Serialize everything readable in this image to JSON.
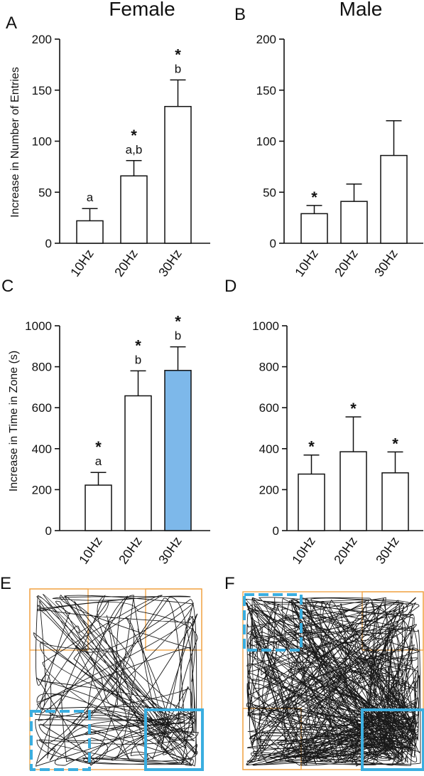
{
  "headers": {
    "female": "Female",
    "male": "Male"
  },
  "panel_letters": {
    "A": "A",
    "B": "B",
    "C": "C",
    "D": "D",
    "E": "E",
    "F": "F"
  },
  "colors": {
    "highlight_bar": "#7db8ea",
    "zone_orange": "#f0a040",
    "zone_blue": "#3aaee0"
  },
  "chart_data": [
    {
      "id": "A",
      "type": "bar",
      "panel": "A",
      "header": "Female",
      "categories": [
        "10Hz",
        "20Hz",
        "30Hz"
      ],
      "values": [
        22,
        66,
        134
      ],
      "errors": [
        12,
        15,
        26
      ],
      "ylabel": "Increase in Number of Entries",
      "ylim": [
        0,
        200
      ],
      "yticks": [
        "0",
        "50",
        "100",
        "150",
        "200"
      ],
      "stars": [
        "",
        "*",
        "*"
      ],
      "letters": [
        "a",
        "a,b",
        "b"
      ],
      "fills": [
        "#ffffff",
        "#ffffff",
        "#ffffff"
      ]
    },
    {
      "id": "B",
      "type": "bar",
      "panel": "B",
      "header": "Male",
      "categories": [
        "10Hz",
        "20Hz",
        "30Hz"
      ],
      "values": [
        29,
        41,
        86
      ],
      "errors": [
        8,
        17,
        34
      ],
      "ylabel": "",
      "ylim": [
        0,
        200
      ],
      "yticks": [
        "0",
        "50",
        "100",
        "150",
        "200"
      ],
      "stars": [
        "*",
        "",
        ""
      ],
      "letters": [
        "",
        "",
        ""
      ],
      "fills": [
        "#ffffff",
        "#ffffff",
        "#ffffff"
      ]
    },
    {
      "id": "C",
      "type": "bar",
      "panel": "C",
      "categories": [
        "10Hz",
        "20Hz",
        "30Hz"
      ],
      "values": [
        222,
        658,
        782
      ],
      "errors": [
        62,
        122,
        115
      ],
      "ylabel": "Increase in Time in Zone (s)",
      "ylim": [
        0,
        1000
      ],
      "yticks": [
        "0",
        "200",
        "400",
        "600",
        "800",
        "1000"
      ],
      "stars": [
        "*",
        "*",
        "*"
      ],
      "letters": [
        "a",
        "b",
        "b"
      ],
      "fills": [
        "#ffffff",
        "#ffffff",
        "#7db8ea"
      ]
    },
    {
      "id": "D",
      "type": "bar",
      "panel": "D",
      "categories": [
        "10Hz",
        "20Hz",
        "30Hz"
      ],
      "values": [
        276,
        385,
        282
      ],
      "errors": [
        93,
        170,
        102
      ],
      "ylabel": "",
      "ylim": [
        0,
        1000
      ],
      "yticks": [
        "0",
        "200",
        "400",
        "600",
        "800",
        "1000"
      ],
      "stars": [
        "*",
        "*",
        "*"
      ],
      "letters": [
        "",
        "",
        ""
      ],
      "fills": [
        "#ffffff",
        "#ffffff",
        "#ffffff"
      ]
    }
  ]
}
